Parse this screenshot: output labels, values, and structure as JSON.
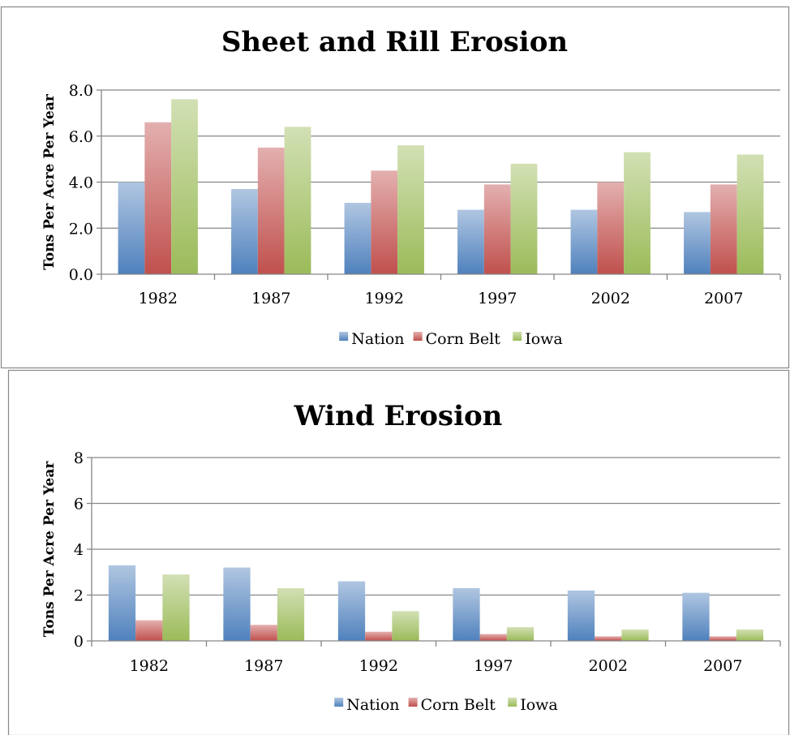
{
  "colors": {
    "Nation": "#4f81bd",
    "Corn Belt": "#c0504d",
    "Iowa": "#9bbb59",
    "axis": "#868686",
    "frame": "#888888"
  },
  "chart_data": [
    {
      "type": "bar",
      "title": "Sheet and Rill Erosion",
      "ylabel": "Tons Per Acre Per Year",
      "xlabel": "",
      "categories": [
        "1982",
        "1987",
        "1992",
        "1997",
        "2002",
        "2007"
      ],
      "ylim": [
        0,
        8
      ],
      "yticks": [
        "0.0",
        "2.0",
        "4.0",
        "6.0",
        "8.0"
      ],
      "grid": true,
      "legend": "bottom",
      "series": [
        {
          "name": "Nation",
          "values": [
            4.0,
            3.7,
            3.1,
            2.8,
            2.8,
            2.7
          ]
        },
        {
          "name": "Corn Belt",
          "values": [
            6.6,
            5.5,
            4.5,
            3.9,
            4.0,
            3.9
          ]
        },
        {
          "name": "Iowa",
          "values": [
            7.6,
            6.4,
            5.6,
            4.8,
            5.3,
            5.2
          ]
        }
      ]
    },
    {
      "type": "bar",
      "title": "Wind Erosion",
      "ylabel": "Tons Per Acre Per Year",
      "xlabel": "",
      "categories": [
        "1982",
        "1987",
        "1992",
        "1997",
        "2002",
        "2007"
      ],
      "ylim": [
        0,
        8
      ],
      "yticks": [
        "0",
        "2",
        "4",
        "6",
        "8"
      ],
      "grid": true,
      "legend": "bottom",
      "series": [
        {
          "name": "Nation",
          "values": [
            3.3,
            3.2,
            2.6,
            2.3,
            2.2,
            2.1
          ]
        },
        {
          "name": "Corn Belt",
          "values": [
            0.9,
            0.7,
            0.4,
            0.3,
            0.2,
            0.2
          ]
        },
        {
          "name": "Iowa",
          "values": [
            2.9,
            2.3,
            1.3,
            0.6,
            0.5,
            0.5
          ]
        }
      ]
    }
  ]
}
